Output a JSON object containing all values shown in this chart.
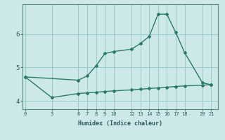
{
  "xlabel": "Humidex (Indice chaleur)",
  "background_color": "#cce8e8",
  "grid_color": "#99cccc",
  "line_color": "#2a7a6a",
  "upper_x": [
    0,
    6,
    7,
    8,
    9,
    10,
    12,
    13,
    14,
    15,
    16,
    17,
    18,
    20,
    21
  ],
  "upper_y": [
    4.72,
    4.62,
    4.75,
    5.05,
    5.42,
    5.48,
    5.55,
    5.72,
    5.93,
    6.6,
    6.6,
    6.05,
    5.45,
    4.55,
    4.48
  ],
  "lower_x": [
    0,
    3,
    6,
    7,
    8,
    9,
    10,
    12,
    13,
    14,
    15,
    16,
    17,
    18,
    20,
    21
  ],
  "lower_y": [
    4.72,
    4.1,
    4.22,
    4.24,
    4.26,
    4.28,
    4.3,
    4.33,
    4.35,
    4.37,
    4.39,
    4.41,
    4.43,
    4.45,
    4.47,
    4.49
  ],
  "xticks": [
    0,
    3,
    6,
    7,
    8,
    9,
    10,
    12,
    13,
    14,
    15,
    16,
    17,
    18,
    20,
    21
  ],
  "yticks": [
    4,
    5,
    6
  ],
  "xlim": [
    -0.3,
    21.8
  ],
  "ylim": [
    3.75,
    6.9
  ]
}
